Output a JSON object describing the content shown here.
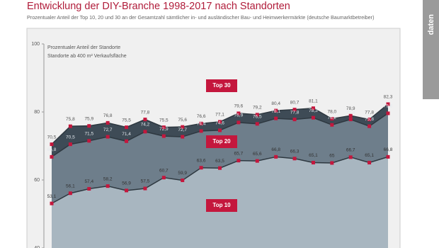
{
  "chart_data": {
    "type": "area",
    "title": "Entwicklung der DIY-Branche 1998-2017 nach Standorten",
    "subtitle": "Prozentualer Anteil der Top 10, 20 und 30 an der Gesamtzahl sämtlicher in- und ausländischer Bau- und Heimwerkermärkte (deutsche Baumarktbetreiber)",
    "annotations": [
      "Prozentualer Anteil der Standorte",
      "Standorte ab 400 m² Verkaufsfläche"
    ],
    "side_tab": "daten",
    "categories": [
      null,
      null,
      null,
      null,
      null,
      null,
      null,
      null,
      null,
      null,
      null,
      null,
      null,
      null,
      null,
      null,
      null,
      null,
      null
    ],
    "series": [
      {
        "name": "Top 30",
        "color": "#3e4b56",
        "values": [
          70.5,
          75.8,
          75.9,
          76.8,
          75.5,
          77.8,
          75.5,
          75.6,
          76.6,
          77.1,
          79.6,
          79.2,
          80.4,
          80.7,
          81.1,
          78.0,
          78.9,
          77.8,
          82.3
        ],
        "value_labels": [
          "70,5",
          "75,8",
          "75,9",
          "76,8",
          "75,5",
          "77,8",
          "75,5",
          "75,6",
          "76,6",
          "77,1",
          "79,6",
          "79,2",
          "80,4",
          "80,7",
          "81,1",
          "78,0",
          "78,9",
          "77,8",
          "82,3"
        ]
      },
      {
        "name": "Top 20",
        "color": "#6e7e8b",
        "values": [
          66.8,
          70.5,
          71.5,
          72.7,
          71.4,
          74.2,
          72.9,
          72.7,
          74.4,
          74.6,
          76.9,
          76.5,
          78.1,
          77.8,
          78.3,
          76.2,
          77.8,
          75.8,
          79.6
        ],
        "value_labels": [
          "66,8",
          "70,5",
          "71,5",
          "72,7",
          "71,4",
          "74,2",
          "72,9",
          "72,7",
          "74,4",
          "74,6",
          "76,9",
          "76,5",
          "78,1",
          "77,8",
          "78,3",
          "76,2",
          "77,8",
          "75,8",
          "79,6"
        ]
      },
      {
        "name": "Top 10",
        "color": "#a8b6c0",
        "values": [
          53.1,
          56.1,
          57.4,
          58.2,
          56.9,
          57.5,
          60.7,
          59.9,
          63.6,
          63.5,
          65.7,
          65.6,
          66.8,
          66.3,
          65.1,
          65,
          66.7,
          65.1,
          66.8
        ],
        "value_labels": [
          "53,1",
          "56,1",
          "57,4",
          "58,2",
          "56,9",
          "57,5",
          "60,7",
          "59,9",
          "63,6",
          "63,5",
          "65,7",
          "65,6",
          "66,8",
          "66,3",
          "65,1",
          "65",
          "66,7",
          "65,1",
          "66,8"
        ]
      }
    ],
    "marker_color": "#c4173d",
    "ylim": [
      40,
      100
    ],
    "yticks": [
      100,
      80,
      60,
      40
    ],
    "grid": false
  }
}
